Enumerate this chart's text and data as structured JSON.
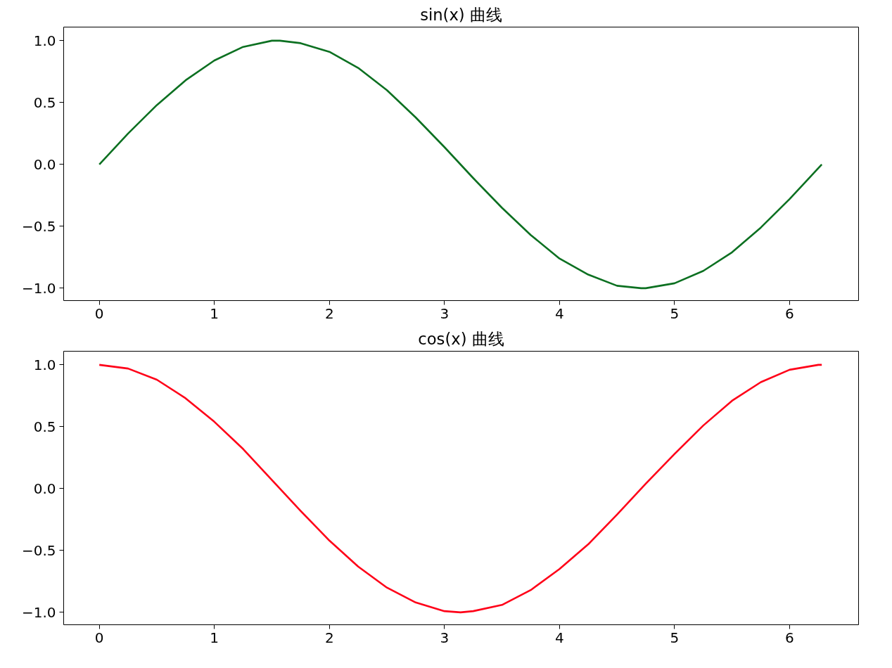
{
  "chart_data": [
    {
      "type": "line",
      "title": "sin(x) 曲线",
      "x": [
        0,
        0.25,
        0.5,
        0.75,
        1,
        1.25,
        1.5,
        1.57,
        1.75,
        2,
        2.25,
        2.5,
        2.75,
        3,
        3.25,
        3.5,
        3.75,
        4,
        4.25,
        4.5,
        4.71,
        4.75,
        5,
        5.25,
        5.5,
        5.75,
        6,
        6.25,
        6.28
      ],
      "series": [
        {
          "color": "#0c7021",
          "values": [
            0,
            0.25,
            0.48,
            0.68,
            0.84,
            0.95,
            1.0,
            1.0,
            0.98,
            0.91,
            0.78,
            0.6,
            0.38,
            0.14,
            -0.11,
            -0.35,
            -0.57,
            -0.76,
            -0.89,
            -0.98,
            -1.0,
            -1.0,
            -0.96,
            -0.86,
            -0.71,
            -0.51,
            -0.28,
            -0.03,
            0
          ]
        }
      ],
      "xlim": [
        -0.31,
        6.6
      ],
      "ylim": [
        -1.1,
        1.11
      ],
      "xticks": [
        0,
        1,
        2,
        3,
        4,
        5,
        6
      ],
      "yticks": [
        {
          "value": -1.0,
          "label": "−1.0"
        },
        {
          "value": -0.5,
          "label": "−0.5"
        },
        {
          "value": 0.0,
          "label": "0.0"
        },
        {
          "value": 0.5,
          "label": "0.5"
        },
        {
          "value": 1.0,
          "label": "1.0"
        }
      ],
      "grid": false,
      "marker": "none",
      "line_style": "solid"
    },
    {
      "type": "line",
      "title": "cos(x) 曲线",
      "x": [
        0,
        0.25,
        0.5,
        0.75,
        1,
        1.25,
        1.5,
        1.75,
        2,
        2.25,
        2.5,
        2.75,
        3,
        3.14,
        3.25,
        3.5,
        3.75,
        4,
        4.25,
        4.5,
        4.75,
        5,
        5.25,
        5.5,
        5.75,
        6,
        6.25,
        6.28
      ],
      "series": [
        {
          "color": "#ff0018",
          "values": [
            1.0,
            0.97,
            0.88,
            0.73,
            0.54,
            0.32,
            0.07,
            -0.18,
            -0.42,
            -0.63,
            -0.8,
            -0.92,
            -0.99,
            -1.0,
            -0.99,
            -0.94,
            -0.82,
            -0.65,
            -0.45,
            -0.21,
            0.04,
            0.28,
            0.51,
            0.71,
            0.86,
            0.96,
            1.0,
            1.0
          ]
        }
      ],
      "xlim": [
        -0.31,
        6.6
      ],
      "ylim": [
        -1.1,
        1.11
      ],
      "xticks": [
        0,
        1,
        2,
        3,
        4,
        5,
        6
      ],
      "yticks": [
        {
          "value": -1.0,
          "label": "−1.0"
        },
        {
          "value": -0.5,
          "label": "−0.5"
        },
        {
          "value": 0.0,
          "label": "0.0"
        },
        {
          "value": 0.5,
          "label": "0.5"
        },
        {
          "value": 1.0,
          "label": "1.0"
        }
      ],
      "grid": false,
      "marker": "none",
      "line_style": "solid"
    }
  ]
}
